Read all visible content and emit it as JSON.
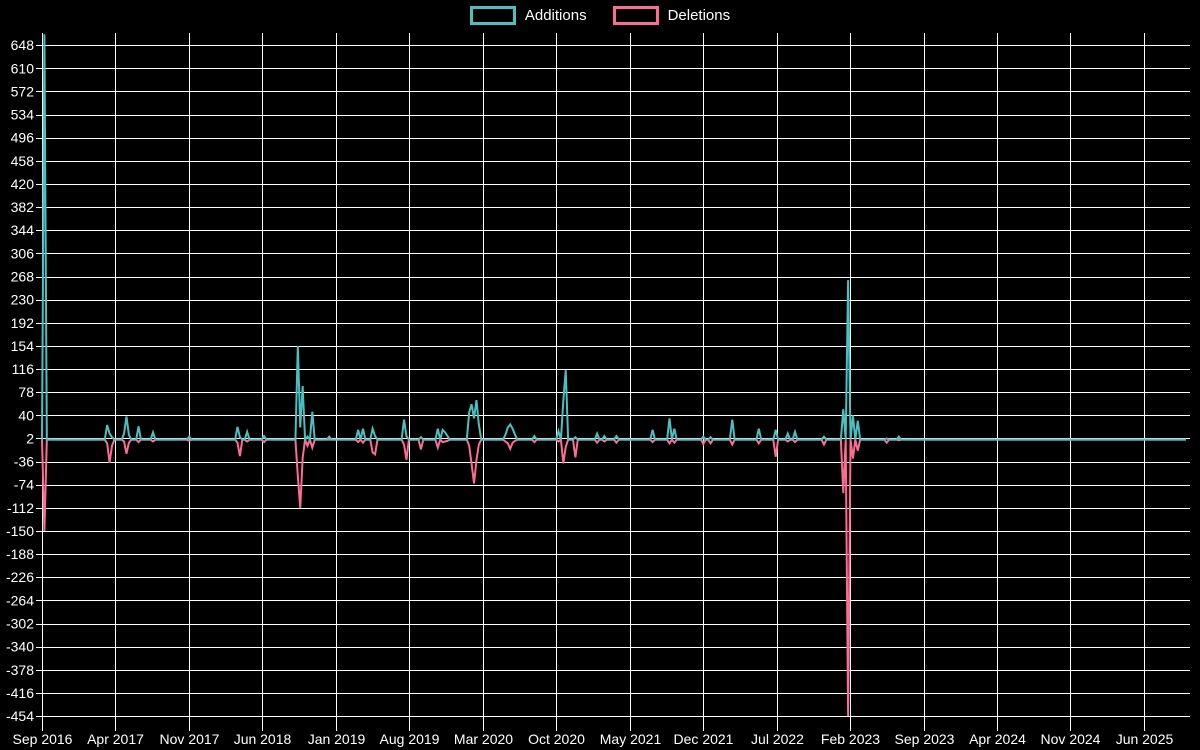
{
  "legend": {
    "additions_label": "Additions",
    "deletions_label": "Deletions"
  },
  "colors": {
    "background": "#000000",
    "grid": "#ffffff",
    "text": "#ffffff",
    "additions": "#4bc0c0",
    "deletions": "#ff6b94"
  },
  "chart_data": {
    "type": "line",
    "title": "",
    "xlabel": "",
    "ylabel": "",
    "legend_position": "top-center",
    "grid": true,
    "x_tick_labels": [
      "Sep 2016",
      "Apr 2017",
      "Nov 2017",
      "Jun 2018",
      "Jan 2019",
      "Aug 2019",
      "Mar 2020",
      "Oct 2020",
      "May 2021",
      "Dec 2021",
      "Jul 2022",
      "Feb 2023",
      "Sep 2023",
      "Apr 2024",
      "Nov 2024",
      "Jun 2025"
    ],
    "x_months_per_tick": 7,
    "y_tick_labels": [
      648,
      610,
      572,
      534,
      496,
      458,
      420,
      382,
      344,
      306,
      268,
      230,
      192,
      154,
      116,
      78,
      40,
      2,
      -36,
      -74,
      -112,
      -150,
      -188,
      -226,
      -264,
      -302,
      -340,
      -378,
      -416,
      -454
    ],
    "y_axis": {
      "min": -472,
      "max": 668,
      "tick_step": 38
    },
    "x_axis": {
      "unit": "weeks since Sep 2016",
      "weeks_total": 475
    },
    "series": [
      {
        "name": "Additions",
        "color_key": "additions"
      },
      {
        "name": "Deletions",
        "color_key": "deletions"
      }
    ],
    "default_value": 0,
    "points_format": [
      "week",
      "additions",
      "deletions"
    ],
    "points": [
      [
        1,
        666,
        -150
      ],
      [
        27,
        24,
        -6
      ],
      [
        28,
        10,
        -38
      ],
      [
        29,
        4,
        -10
      ],
      [
        34,
        10,
        -3
      ],
      [
        35,
        38,
        -23
      ],
      [
        36,
        8,
        -5
      ],
      [
        40,
        22,
        -4
      ],
      [
        46,
        12,
        -3
      ],
      [
        61,
        5,
        -2
      ],
      [
        81,
        21,
        -5
      ],
      [
        82,
        4,
        -27
      ],
      [
        85,
        13,
        -3
      ],
      [
        92,
        6,
        -4
      ],
      [
        106,
        154,
        -60
      ],
      [
        107,
        20,
        -112
      ],
      [
        108,
        88,
        -30
      ],
      [
        110,
        5,
        -10
      ],
      [
        112,
        46,
        -13
      ],
      [
        119,
        5,
        0
      ],
      [
        131,
        16,
        -4
      ],
      [
        133,
        18,
        -5
      ],
      [
        137,
        18,
        -21
      ],
      [
        138,
        6,
        -24
      ],
      [
        150,
        33,
        -8
      ],
      [
        151,
        6,
        -33
      ],
      [
        157,
        4,
        -16
      ],
      [
        164,
        18,
        -13
      ],
      [
        166,
        16,
        -4
      ],
      [
        167,
        12,
        -3
      ],
      [
        168,
        6,
        -2
      ],
      [
        177,
        45,
        -10
      ],
      [
        178,
        58,
        -40
      ],
      [
        179,
        35,
        -72
      ],
      [
        180,
        65,
        -34
      ],
      [
        181,
        25,
        -8
      ],
      [
        192,
        8,
        -3
      ],
      [
        193,
        20,
        -6
      ],
      [
        194,
        25,
        -15
      ],
      [
        195,
        18,
        -5
      ],
      [
        196,
        8,
        -2
      ],
      [
        204,
        6,
        -4
      ],
      [
        214,
        14,
        -3
      ],
      [
        216,
        64,
        -39
      ],
      [
        217,
        114,
        -12
      ],
      [
        221,
        4,
        -29
      ],
      [
        230,
        10,
        -5
      ],
      [
        233,
        6,
        -3
      ],
      [
        238,
        6,
        -5
      ],
      [
        253,
        16,
        -4
      ],
      [
        260,
        35,
        -6
      ],
      [
        262,
        18,
        -5
      ],
      [
        274,
        5,
        -7
      ],
      [
        277,
        4,
        -6
      ],
      [
        286,
        33,
        -8
      ],
      [
        297,
        18,
        -6
      ],
      [
        304,
        16,
        -28
      ],
      [
        309,
        10,
        -3
      ],
      [
        312,
        13,
        -4
      ],
      [
        324,
        5,
        -8
      ],
      [
        332,
        50,
        -88
      ],
      [
        334,
        262,
        -454
      ],
      [
        336,
        40,
        -31
      ],
      [
        338,
        31,
        -18
      ],
      [
        350,
        2,
        -5
      ],
      [
        355,
        5,
        -1
      ]
    ]
  }
}
